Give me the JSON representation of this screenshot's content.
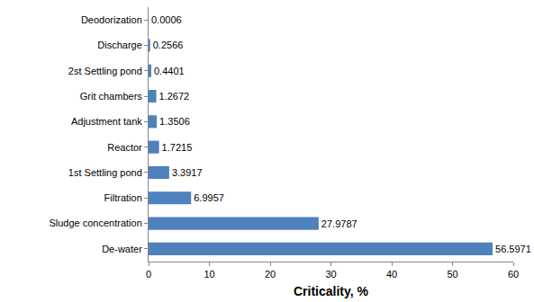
{
  "chart_data": {
    "type": "bar",
    "orientation": "horizontal",
    "x_label": "Criticality, %",
    "categories": [
      "De-water",
      "Sludge concentration",
      "Filtration",
      "1st Settling pond",
      "Reactor",
      "Adjustment tank",
      "Grit chambers",
      "2st Settling pond",
      "Discharge",
      "Deodorization"
    ],
    "values": [
      56.5971,
      27.9787,
      6.9957,
      3.3917,
      1.7215,
      1.3506,
      1.2672,
      0.4401,
      0.2566,
      0.0006
    ],
    "color": "#4f81bd",
    "xlim": [
      0,
      60
    ],
    "xticks": [
      0,
      10,
      20,
      30,
      40,
      50,
      60
    ],
    "grid": false,
    "data_labels": true
  }
}
